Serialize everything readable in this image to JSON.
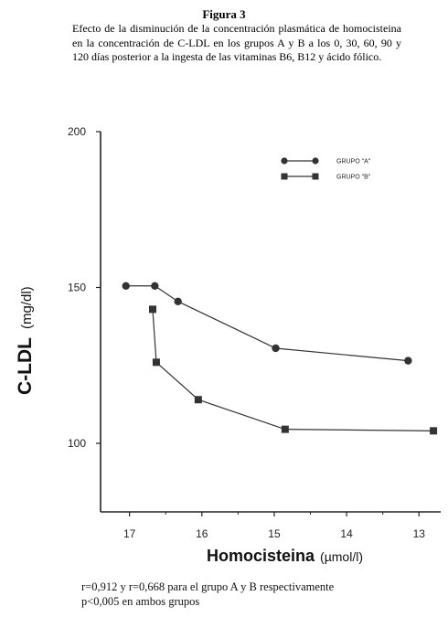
{
  "figure": {
    "title": "Figura 3",
    "caption": "Efecto de la disminución de la concentración plasmática de homocisteina en la concentración de C-LDL en los grupos A y B a los 0, 30, 60, 90 y 120 días posterior a la ingesta de las vitaminas B6, B12 y ácido fólico."
  },
  "footnote": {
    "line1": "r=0,912 y r=0,668 para el grupo A y B respectivamente",
    "line2": "p<0,005 en ambos grupos"
  },
  "chart_data": {
    "type": "line",
    "xlabel_main": "Homocisteina",
    "xlabel_unit": "(µmol/l)",
    "ylabel_main": "C-LDL",
    "ylabel_unit": "(mg/dl)",
    "x_ticks": [
      17,
      16,
      15,
      14,
      13
    ],
    "y_ticks": [
      100,
      150,
      200
    ],
    "xlim": [
      17.4,
      12.7
    ],
    "ylim": [
      78,
      200
    ],
    "x_reversed": true,
    "grid": false,
    "legend_position": "top-right",
    "series": [
      {
        "name": "GRUPO \"A\"",
        "marker": "circle",
        "color": "#333333",
        "x": [
          17.05,
          16.65,
          16.33,
          14.98,
          13.15
        ],
        "y": [
          150.5,
          150.5,
          145.5,
          130.5,
          126.5
        ]
      },
      {
        "name": "GRUPO \"B\"",
        "marker": "square",
        "color": "#333333",
        "x": [
          16.68,
          16.63,
          16.05,
          14.85,
          12.8
        ],
        "y": [
          143,
          126,
          114,
          104.5,
          104
        ]
      }
    ]
  }
}
